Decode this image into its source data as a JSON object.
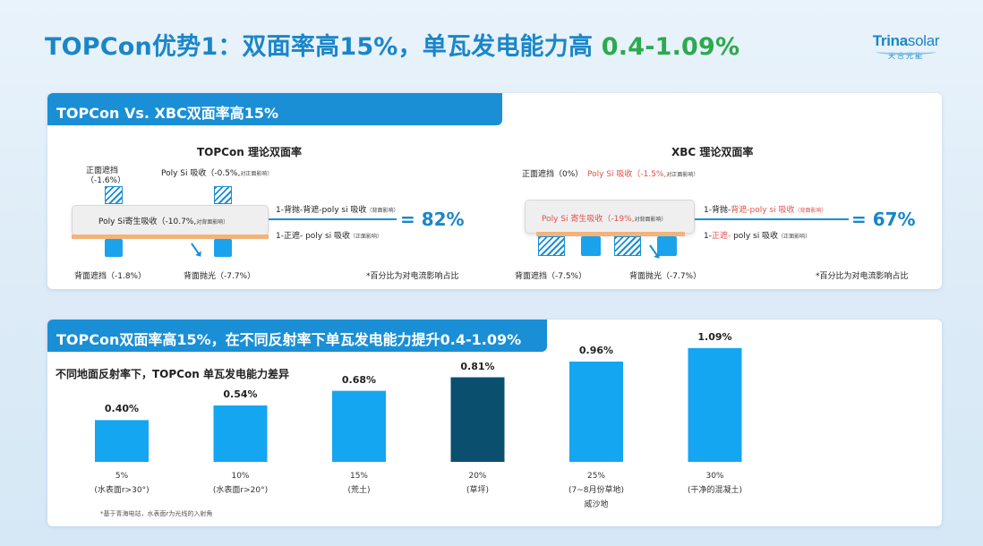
{
  "header": {
    "title_main": "TOPCon优势1：双面率高15%，单瓦发电能力高 ",
    "title_highlight": "0.4-1.09%",
    "logo_main_bold": "Trina",
    "logo_main_light": "solar",
    "logo_sub": "天合光能"
  },
  "panel1": {
    "tab": "TOPCon Vs. XBC双面率高15%",
    "topcon": {
      "heading": "TOPCon 理论双面率",
      "front_shading": "正面遮挡（-1.6%）",
      "poly_front": "Poly Si 吸收（-0.5%,",
      "poly_front_note": "对正面影响）",
      "parasitic": "Poly Si寄生吸收（-10.7%,",
      "parasitic_note": "对背面影响）",
      "line1": "1-背抛-背遮-poly si 吸收",
      "line1_note": "（背面影响）",
      "line2": "1-正遮- poly si 吸收",
      "line2_note": "（正面影响）",
      "result": "= 82%",
      "rear_shading": "背面遮挡（-1.8%）",
      "rear_polish": "背面抛光（-7.7%）",
      "footnote": "*百分比为对电流影响占比"
    },
    "xbc": {
      "heading": "XBC 理论双面率",
      "front_shading": "正面遮挡（0%）",
      "poly_front": "Poly Si 吸收（-1.5%,",
      "poly_front_note": "对正面影响）",
      "parasitic": "Poly Si 寄生吸收（-19%,",
      "parasitic_note": "对背面影响）",
      "line1_a": "1-背抛-",
      "line1_b": "背遮-poly si 吸收",
      "line1_note": "（背面影响）",
      "line2_a": "1-",
      "line2_b": "正遮-",
      "line2_c": " poly si 吸收",
      "line2_note": "（正面影响）",
      "result": "= 67%",
      "rear_shading": "背面遮挡（-7.5%）",
      "rear_polish": "背面抛光（-7.7%）",
      "footnote": "*百分比为对电流影响占比"
    }
  },
  "panel2": {
    "tab": "TOPCon双面率高15%，在不同反射率下单瓦发电能力提升0.4-1.09%",
    "subtitle": "不同地面反射率下，TOPCon 单瓦发电能力差异",
    "footnote": "*基于青海电站，水表面r为光线的入射角"
  },
  "chart_data": {
    "type": "bar",
    "title": "不同地面反射率下，TOPCon 单瓦发电能力差异",
    "categories": [
      "5%",
      "10%",
      "15%",
      "20%",
      "25%",
      "30%"
    ],
    "category_sublabels": [
      "(水表面r>30°)",
      "(水表面r>20°)",
      "(荒土)",
      "(草坪)",
      "(7~8月份草地)",
      "(干净的混凝土)"
    ],
    "category_sublabels2": [
      "",
      "",
      "",
      "",
      "威沙地",
      ""
    ],
    "values": [
      0.4,
      0.54,
      0.68,
      0.81,
      0.96,
      1.09
    ],
    "value_labels": [
      "0.40%",
      "0.54%",
      "0.68%",
      "0.81%",
      "0.96%",
      "1.09%"
    ],
    "ylim": [
      0,
      1.2
    ],
    "colors": [
      "#14a6f0",
      "#14a6f0",
      "#14a6f0",
      "#0b4f6e",
      "#14a6f0",
      "#14a6f0"
    ],
    "grid": false,
    "legend": "none"
  }
}
